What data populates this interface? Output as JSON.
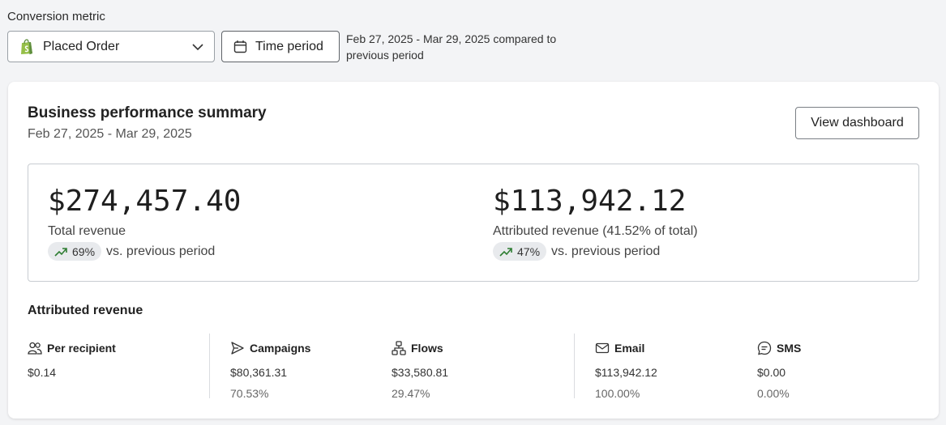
{
  "header": {
    "metric_label": "Conversion metric",
    "metric_value": "Placed Order",
    "time_button": "Time period",
    "compare_text": "Feb 27, 2025 - Mar 29, 2025 compared to previous period"
  },
  "card": {
    "title": "Business performance summary",
    "date_range": "Feb 27, 2025 - Mar 29, 2025",
    "view_button": "View dashboard"
  },
  "kpis": [
    {
      "value": "$274,457.40",
      "label": "Total revenue",
      "change": "69%",
      "change_suffix": "vs. previous period"
    },
    {
      "value": "$113,942.12",
      "label": "Attributed revenue (41.52% of total)",
      "change": "47%",
      "change_suffix": "vs. previous period"
    }
  ],
  "attributed": {
    "title": "Attributed revenue",
    "stats": [
      {
        "label": "Per recipient",
        "value": "$0.14",
        "percent": "",
        "icon": "people-icon"
      },
      {
        "label": "Campaigns",
        "value": "$80,361.31",
        "percent": "70.53%",
        "icon": "send-icon"
      },
      {
        "label": "Flows",
        "value": "$33,580.81",
        "percent": "29.47%",
        "icon": "flow-icon"
      },
      {
        "label": "Email",
        "value": "$113,942.12",
        "percent": "100.00%",
        "icon": "mail-icon"
      },
      {
        "label": "SMS",
        "value": "$0.00",
        "percent": "0.00%",
        "icon": "sms-icon"
      }
    ]
  },
  "colors": {
    "shopify_green": "#5e8e3e",
    "trend_green": "#2e7d32"
  }
}
